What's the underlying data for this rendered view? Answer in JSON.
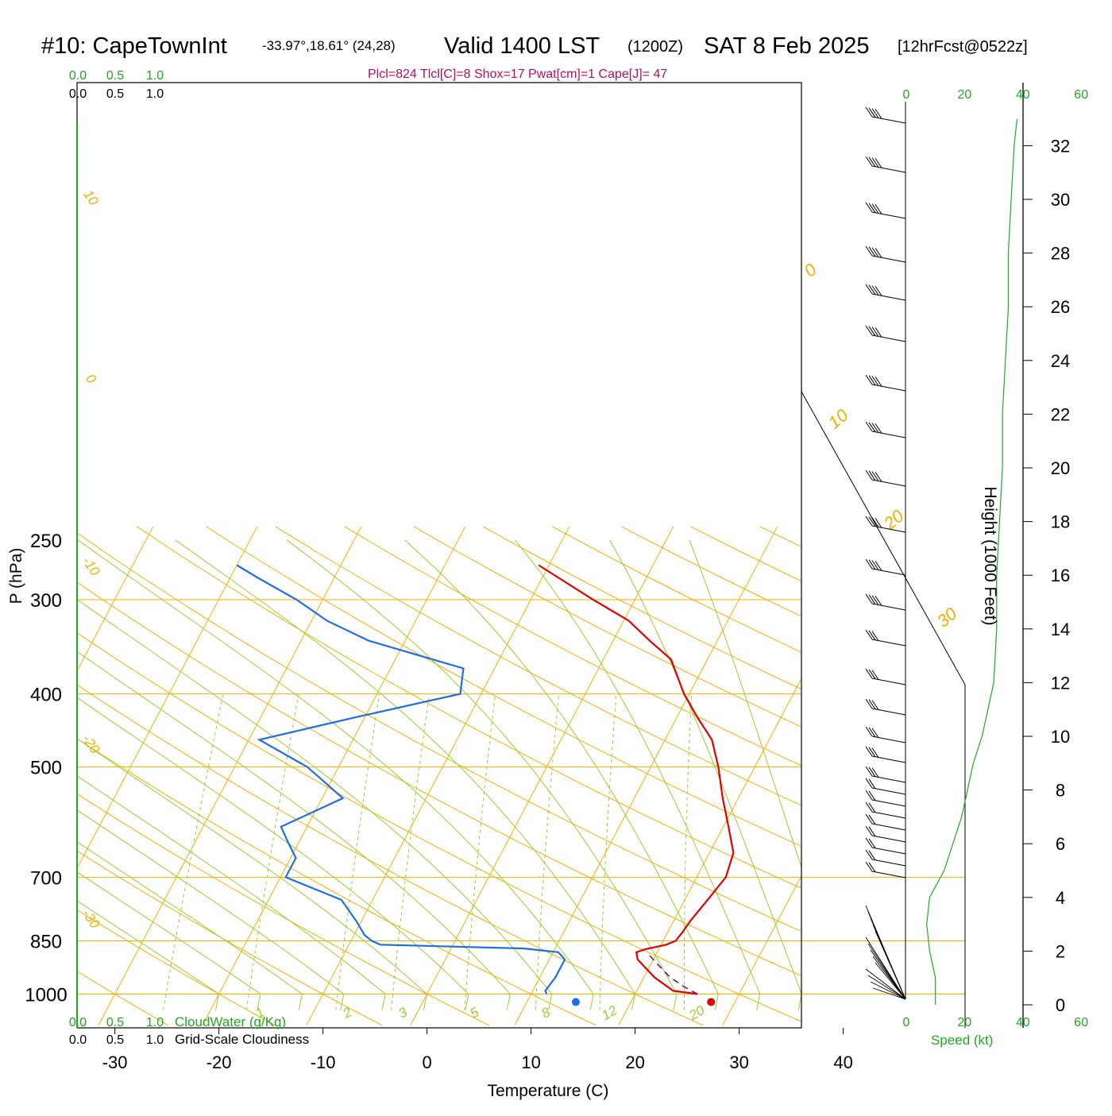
{
  "header": {
    "station": "#10: CapeTownInt",
    "coords": "-33.97°,18.61° (24,28)",
    "valid": "Valid 1400 LST",
    "utc": "(1200Z)",
    "date": "SAT 8 Feb 2025",
    "forecast": "[12hrFcst@0522z]",
    "indices": "Plcl=824 Tlcl[C]=8 Shox=17 Pwat[cm]=1 Cape[J]= 47"
  },
  "colors": {
    "temperature": "#e00000",
    "dewpoint": "#1e6ee6",
    "parcel": "#7a1070",
    "isotherm_isobar": "#f0b000",
    "adiabat": "#9acd32",
    "mixing_ratio": "#9acd32",
    "speed": "#22a822",
    "cloud_scale": "#22a822"
  },
  "chart_data": {
    "type": "line",
    "subtype": "skew-t log-p",
    "xlabel": "Temperature (C)",
    "ylabel": "P (hPa)",
    "y2label": "Height (1000 Feet)",
    "xticks": [
      "-30",
      "-20",
      "-10",
      "0",
      "10",
      "20",
      "30",
      "40"
    ],
    "pressure_ticks": [
      "250",
      "300",
      "400",
      "500",
      "700",
      "850",
      "1000"
    ],
    "height_ticks": [
      "0",
      "2",
      "4",
      "6",
      "8",
      "10",
      "12",
      "14",
      "16",
      "18",
      "20",
      "22",
      "24",
      "26",
      "28",
      "30",
      "32"
    ],
    "cloud_scale_top_green": [
      "0.0",
      "0.5",
      "1.0"
    ],
    "cloud_scale_top_black": [
      "0.0",
      "0.5",
      "1.0"
    ],
    "cloud_scale_bottom_green": [
      "0.0",
      "0.5",
      "1.0"
    ],
    "cloud_scale_bottom_black": [
      "0.0",
      "0.5",
      "1.0"
    ],
    "cloudwater_label": "CloudWater (g/Kg)",
    "cloudiness_label": "Grid-Scale Cloudiness",
    "speed_ticks": [
      "0",
      "20",
      "40",
      "60"
    ],
    "speed_label": "Speed (kt)",
    "isotherm_labels": [
      "0",
      "10",
      "20",
      "30"
    ],
    "adiabat_labels": [
      "10",
      "0",
      "-10",
      "-20",
      "-30"
    ],
    "mixing_ratio_labels": [
      "1",
      "2",
      "3",
      "5",
      "8",
      "12",
      "20"
    ],
    "series": [
      {
        "name": "Temperature",
        "points": [
          [
            26,
            1000
          ],
          [
            23.5,
            990
          ],
          [
            21,
            950
          ],
          [
            18.5,
            900
          ],
          [
            18,
            880
          ],
          [
            18.7,
            872
          ],
          [
            20.5,
            860
          ],
          [
            21.2,
            850
          ],
          [
            21.4,
            830
          ],
          [
            21.6,
            800
          ],
          [
            22.2,
            750
          ],
          [
            22.8,
            700
          ],
          [
            22.3,
            650
          ],
          [
            20.5,
            600
          ],
          [
            18.5,
            550
          ],
          [
            16.5,
            500
          ],
          [
            14.5,
            460
          ],
          [
            12.0,
            430
          ],
          [
            9.5,
            400
          ],
          [
            6.5,
            360
          ],
          [
            3.5,
            340
          ],
          [
            0.5,
            320
          ],
          [
            -4.0,
            300
          ],
          [
            -11.0,
            270
          ]
        ]
      },
      {
        "name": "Dewpoint",
        "points": [
          [
            11.5,
            1000
          ],
          [
            11.2,
            990
          ],
          [
            11.5,
            950
          ],
          [
            11.5,
            900
          ],
          [
            10.5,
            880
          ],
          [
            7.0,
            870
          ],
          [
            -7.0,
            860
          ],
          [
            -8.0,
            850
          ],
          [
            -9.0,
            835
          ],
          [
            -10.5,
            800
          ],
          [
            -13.0,
            750
          ],
          [
            -19.5,
            700
          ],
          [
            -19.5,
            660
          ],
          [
            -21.0,
            630
          ],
          [
            -22.5,
            600
          ],
          [
            -18.0,
            550
          ],
          [
            -23.0,
            500
          ],
          [
            -29.0,
            460
          ],
          [
            -21.0,
            430
          ],
          [
            -12.0,
            400
          ],
          [
            -13.0,
            370
          ],
          [
            -23.5,
            340
          ],
          [
            -28.5,
            320
          ],
          [
            -32.5,
            300
          ],
          [
            -37.5,
            280
          ],
          [
            -40.0,
            270
          ]
        ]
      },
      {
        "name": "Parcel",
        "points": [
          [
            26,
            1000
          ],
          [
            24.5,
            980
          ],
          [
            22.5,
            950
          ],
          [
            20.5,
            910
          ],
          [
            19.0,
            880
          ]
        ]
      }
    ],
    "surface_temperature": [
      27.3,
      1000
    ],
    "surface_dewpoint": [
      14.3,
      1000
    ],
    "wind_speed_kt": [
      [
        0,
        10
      ],
      [
        1,
        10
      ],
      [
        2,
        8
      ],
      [
        3,
        7
      ],
      [
        4,
        8
      ],
      [
        5,
        13
      ],
      [
        6,
        16
      ],
      [
        7,
        19
      ],
      [
        8,
        21
      ],
      [
        9,
        23
      ],
      [
        10,
        26
      ],
      [
        11,
        28
      ],
      [
        12,
        30
      ],
      [
        14,
        31
      ],
      [
        16,
        31
      ],
      [
        18,
        32
      ],
      [
        20,
        33
      ],
      [
        22,
        33
      ],
      [
        24,
        34
      ],
      [
        26,
        35
      ],
      [
        28,
        35
      ],
      [
        30,
        36
      ],
      [
        32,
        37
      ],
      [
        33,
        38
      ]
    ]
  }
}
